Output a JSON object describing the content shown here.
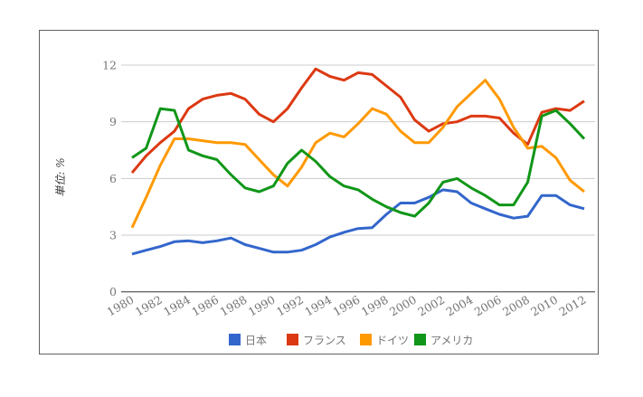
{
  "chart": {
    "y_axis_title": "単位: %",
    "legend": [
      {
        "key": "japan",
        "label": "日本",
        "color": "#3366CC"
      },
      {
        "key": "france",
        "label": "フランス",
        "color": "#DC3912"
      },
      {
        "key": "germany",
        "label": "ドイツ",
        "color": "#FF9900"
      },
      {
        "key": "usa",
        "label": "アメリカ",
        "color": "#109618"
      }
    ]
  },
  "chart_data": {
    "type": "line",
    "title": "",
    "xlabel": "",
    "ylabel": "単位: %",
    "ylim": [
      0,
      12
    ],
    "y_ticks": [
      0,
      3,
      6,
      9,
      12
    ],
    "grid": "horizontal",
    "legend_position": "bottom",
    "x": [
      1980,
      1981,
      1982,
      1983,
      1984,
      1985,
      1986,
      1987,
      1988,
      1989,
      1990,
      1991,
      1992,
      1993,
      1994,
      1995,
      1996,
      1997,
      1998,
      1999,
      2000,
      2001,
      2002,
      2003,
      2004,
      2005,
      2006,
      2007,
      2008,
      2009,
      2010,
      2011,
      2012
    ],
    "x_tick_labels": [
      "1980",
      "1982",
      "1984",
      "1986",
      "1988",
      "1990",
      "1992",
      "1994",
      "1996",
      "1998",
      "2000",
      "2002",
      "2004",
      "2006",
      "2008",
      "2010",
      "2012"
    ],
    "series": [
      {
        "key": "japan",
        "name": "日本",
        "color": "#3366CC",
        "values": [
          2.0,
          2.2,
          2.4,
          2.65,
          2.7,
          2.6,
          2.7,
          2.85,
          2.5,
          2.3,
          2.1,
          2.1,
          2.2,
          2.5,
          2.9,
          3.15,
          3.35,
          3.4,
          4.1,
          4.7,
          4.7,
          5.0,
          5.4,
          5.3,
          4.7,
          4.4,
          4.1,
          3.9,
          4.0,
          5.1,
          5.1,
          4.6,
          4.4
        ]
      },
      {
        "key": "france",
        "name": "フランス",
        "color": "#DC3912",
        "values": [
          6.3,
          7.2,
          7.9,
          8.5,
          9.7,
          10.2,
          10.4,
          10.5,
          10.2,
          9.4,
          9.0,
          9.7,
          10.8,
          11.8,
          11.4,
          11.2,
          11.6,
          11.5,
          10.9,
          10.3,
          9.1,
          8.5,
          8.9,
          9.0,
          9.3,
          9.3,
          9.2,
          8.4,
          7.8,
          9.5,
          9.7,
          9.6,
          10.1
        ]
      },
      {
        "key": "germany",
        "name": "ドイツ",
        "color": "#FF9900",
        "values": [
          3.4,
          5.0,
          6.7,
          8.1,
          8.1,
          8.0,
          7.9,
          7.9,
          7.8,
          7.0,
          6.2,
          5.6,
          6.6,
          7.9,
          8.4,
          8.2,
          8.9,
          9.7,
          9.4,
          8.5,
          7.9,
          7.9,
          8.7,
          9.8,
          10.5,
          11.2,
          10.2,
          8.7,
          7.6,
          7.7,
          7.1,
          5.9,
          5.3
        ]
      },
      {
        "key": "usa",
        "name": "アメリカ",
        "color": "#109618",
        "values": [
          7.1,
          7.6,
          9.7,
          9.6,
          7.5,
          7.2,
          7.0,
          6.2,
          5.5,
          5.3,
          5.6,
          6.8,
          7.5,
          6.9,
          6.1,
          5.6,
          5.4,
          4.9,
          4.5,
          4.2,
          4.0,
          4.7,
          5.8,
          6.0,
          5.5,
          5.1,
          4.6,
          4.6,
          5.8,
          9.3,
          9.6,
          8.9,
          8.1
        ]
      }
    ]
  },
  "style_colors": {
    "grid_color": "#cccccc",
    "baseline_color": "#333333",
    "tick_label_color": "#757575",
    "axis_title_color": "#3a3a3a",
    "legend_text_color": "#757575",
    "frame_border_color": "#616161"
  }
}
